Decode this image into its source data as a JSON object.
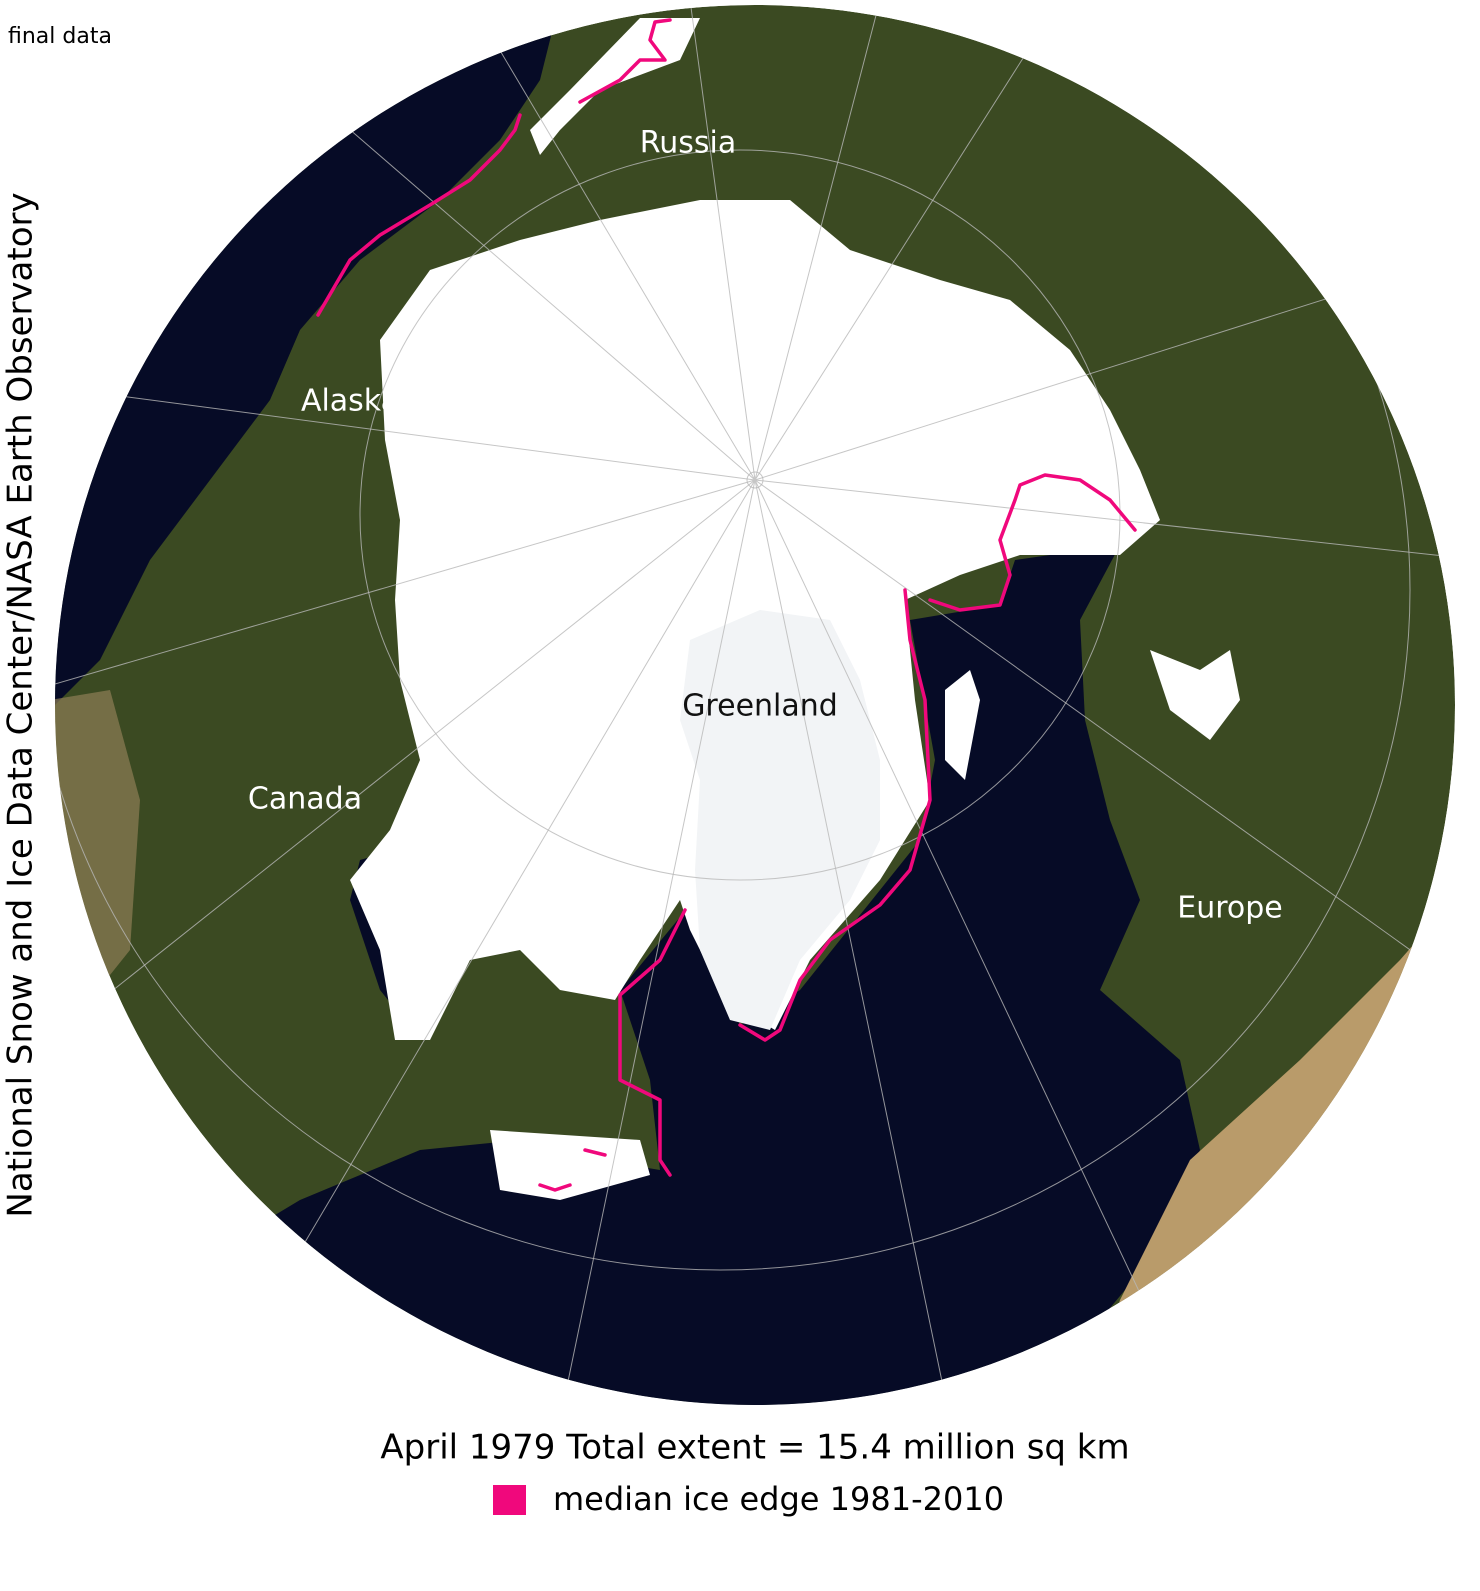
{
  "header": {
    "status": "final data",
    "credit": "National Snow and Ice Data Center/NASA Earth Observatory"
  },
  "map": {
    "labels": [
      "Russia",
      "Alaska",
      "Canada",
      "Greenland",
      "Europe"
    ]
  },
  "caption": {
    "title": "April 1979 Total extent = 15.4 million sq km",
    "legend": "median ice edge 1981-2010"
  }
}
